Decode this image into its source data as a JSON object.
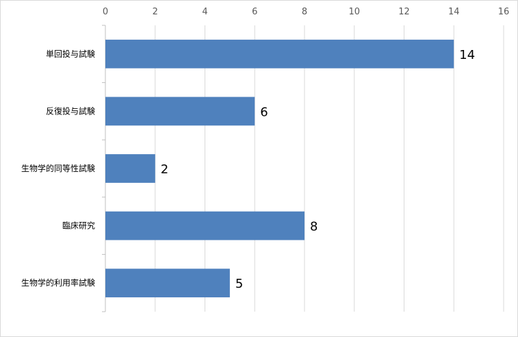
{
  "chart_data": {
    "type": "bar",
    "orientation": "horizontal",
    "categories": [
      "単回投与試験",
      "反復投与試験",
      "生物学的同等性試験",
      "臨床研究",
      "生物学的利用率試験"
    ],
    "values": [
      14,
      6,
      2,
      8,
      5
    ],
    "xlim": [
      0,
      16
    ],
    "x_ticks": [
      0,
      2,
      4,
      6,
      8,
      10,
      12,
      14,
      16
    ],
    "x_axis_position": "top",
    "grid": "vertical",
    "data_labels": true,
    "legend": "none",
    "title": "",
    "xlabel": "",
    "ylabel": "",
    "colors": {
      "bar": "#4f81bd",
      "grid": "#d9d9d9",
      "axis": "#bfbfbf"
    }
  }
}
